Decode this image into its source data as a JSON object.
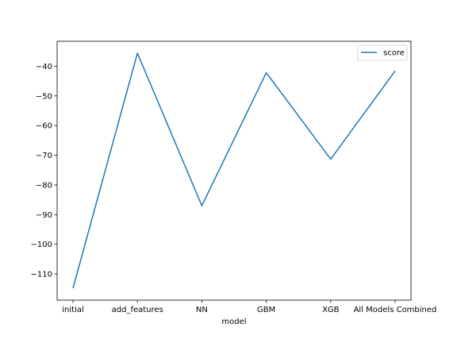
{
  "chart_data": {
    "type": "line",
    "title": "",
    "xlabel": "model",
    "ylabel": "",
    "categories": [
      "initial",
      "add_features",
      "NN",
      "GBM",
      "XGB",
      "All Models Combined"
    ],
    "series": [
      {
        "name": "score",
        "color": "#1f77b4",
        "values": [
          -114.8,
          -35.6,
          -87.0,
          -42.2,
          -71.3,
          -41.6
        ]
      }
    ],
    "ylim": [
      -118.8,
      -31.6
    ],
    "yticks": [
      -110,
      -100,
      -90,
      -80,
      -70,
      -60,
      -50,
      -40
    ],
    "ytick_labels": [
      "−110",
      "−100",
      "−90",
      "−80",
      "−70",
      "−60",
      "−50",
      "−40"
    ],
    "grid": false,
    "legend_position": "top-right"
  }
}
